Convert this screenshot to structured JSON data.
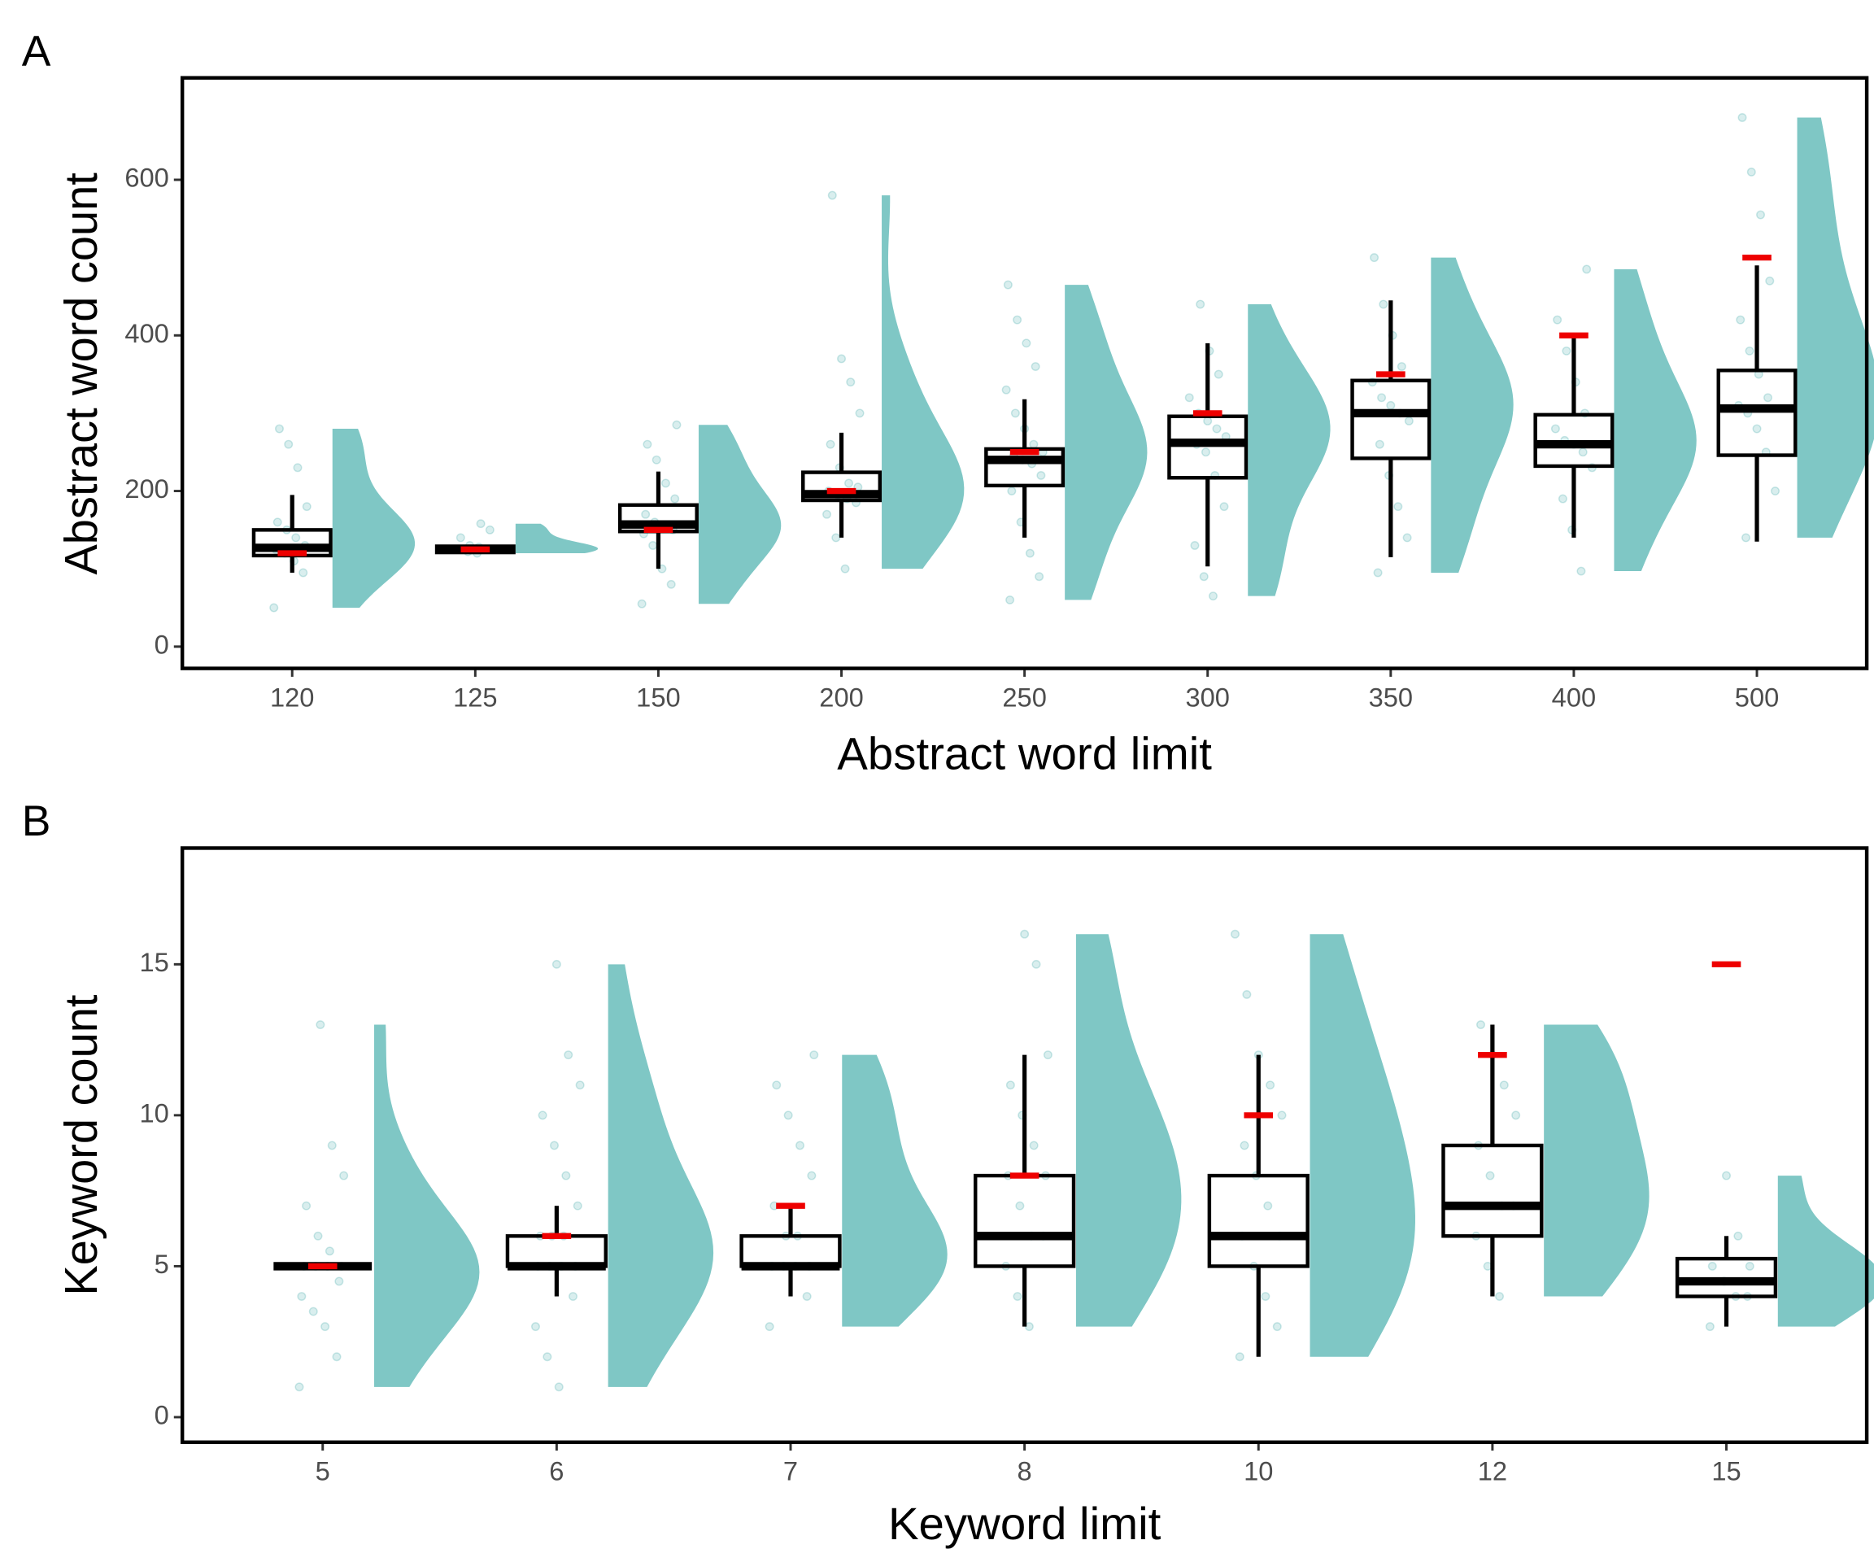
{
  "chart_data": [
    {
      "type": "box",
      "panel_label": "A",
      "xlabel": "Abstract word limit",
      "ylabel": "Abstract word count",
      "categories": [
        "120",
        "125",
        "150",
        "200",
        "250",
        "300",
        "350",
        "400",
        "500"
      ],
      "boxes": [
        {
          "min": 95,
          "q1": 117,
          "median": 127,
          "q3": 150,
          "max": 195
        },
        {
          "min": 120,
          "q1": 121,
          "median": 125,
          "q3": 129,
          "max": 130
        },
        {
          "min": 100,
          "q1": 148,
          "median": 157,
          "q3": 182,
          "max": 225
        },
        {
          "min": 140,
          "q1": 188,
          "median": 196,
          "q3": 224,
          "max": 275
        },
        {
          "min": 140,
          "q1": 207,
          "median": 240,
          "q3": 254,
          "max": 318
        },
        {
          "min": 103,
          "q1": 217,
          "median": 262,
          "q3": 296,
          "max": 390
        },
        {
          "min": 115,
          "q1": 242,
          "median": 300,
          "q3": 342,
          "max": 445
        },
        {
          "min": 140,
          "q1": 232,
          "median": 260,
          "q3": 298,
          "max": 400
        },
        {
          "min": 135,
          "q1": 246,
          "median": 306,
          "q3": 355,
          "max": 490
        }
      ],
      "points": [
        [
          50,
          95,
          110,
          120,
          125,
          130,
          140,
          150,
          160,
          180,
          230,
          260,
          280
        ],
        [
          120,
          122,
          125,
          125,
          128,
          130,
          140,
          150,
          158
        ],
        [
          55,
          80,
          100,
          130,
          145,
          150,
          155,
          160,
          170,
          190,
          210,
          240,
          260,
          285
        ],
        [
          100,
          140,
          170,
          185,
          190,
          195,
          200,
          205,
          210,
          230,
          260,
          300,
          340,
          370,
          580
        ],
        [
          60,
          90,
          120,
          160,
          200,
          220,
          235,
          240,
          245,
          250,
          260,
          280,
          300,
          330,
          360,
          390,
          420,
          465
        ],
        [
          65,
          90,
          130,
          180,
          220,
          250,
          260,
          270,
          280,
          290,
          300,
          320,
          350,
          380,
          440
        ],
        [
          95,
          140,
          180,
          220,
          260,
          290,
          300,
          310,
          320,
          340,
          360,
          400,
          440,
          500
        ],
        [
          97,
          150,
          190,
          230,
          250,
          260,
          265,
          280,
          300,
          340,
          380,
          420,
          485
        ],
        [
          140,
          200,
          250,
          280,
          300,
          310,
          320,
          350,
          380,
          420,
          470,
          555,
          610,
          680
        ]
      ],
      "limits": [
        120,
        125,
        150,
        200,
        250,
        300,
        350,
        400,
        500
      ],
      "ylim": [
        -28,
        731
      ],
      "yticks": [
        0,
        200,
        400,
        600
      ],
      "point_color": "#008b8b",
      "violin_color": "#7fc7c5",
      "limit_color": "#ee0000",
      "box_color": "#000000"
    },
    {
      "type": "box",
      "panel_label": "B",
      "xlabel": "Keyword limit",
      "ylabel": "Keyword count",
      "categories": [
        "5",
        "6",
        "7",
        "8",
        "10",
        "12",
        "15"
      ],
      "boxes": [
        {
          "min": 5,
          "q1": 5,
          "median": 5,
          "q3": 5,
          "max": 5
        },
        {
          "min": 4,
          "q1": 5,
          "median": 5,
          "q3": 6,
          "max": 7
        },
        {
          "min": 4,
          "q1": 5,
          "median": 5,
          "q3": 6,
          "max": 7
        },
        {
          "min": 3,
          "q1": 5,
          "median": 6,
          "q3": 8,
          "max": 12
        },
        {
          "min": 2,
          "q1": 5,
          "median": 6,
          "q3": 8,
          "max": 12
        },
        {
          "min": 4,
          "q1": 6,
          "median": 7,
          "q3": 9,
          "max": 13
        },
        {
          "min": 3,
          "q1": 4,
          "median": 4.5,
          "q3": 5.25,
          "max": 6
        }
      ],
      "points": [
        [
          1,
          2,
          3,
          3.5,
          4,
          4.5,
          5,
          5,
          5,
          5,
          5.5,
          6,
          7,
          8,
          9,
          13
        ],
        [
          1,
          2,
          3,
          4,
          5,
          5,
          5,
          5,
          6,
          6,
          6,
          7,
          8,
          9,
          10,
          11,
          12,
          15
        ],
        [
          3,
          4,
          5,
          5,
          5,
          5,
          6,
          6,
          7,
          8,
          9,
          10,
          11,
          12
        ],
        [
          3,
          4,
          5,
          6,
          6,
          7,
          8,
          8,
          9,
          10,
          11,
          12,
          15,
          16
        ],
        [
          2,
          3,
          4,
          5,
          6,
          6,
          7,
          8,
          9,
          10,
          11,
          12,
          14,
          16
        ],
        [
          4,
          5,
          6,
          7,
          7,
          8,
          9,
          10,
          11,
          12,
          13
        ],
        [
          3,
          4,
          4,
          4.5,
          5,
          5,
          6,
          8
        ]
      ],
      "limits": [
        5,
        6,
        7,
        8,
        10,
        12,
        15
      ],
      "ylim": [
        -0.83,
        18.85
      ],
      "yticks": [
        0,
        5,
        10,
        15
      ],
      "point_color": "#008b8b",
      "violin_color": "#7fc7c5",
      "limit_color": "#ee0000",
      "box_color": "#000000"
    }
  ]
}
